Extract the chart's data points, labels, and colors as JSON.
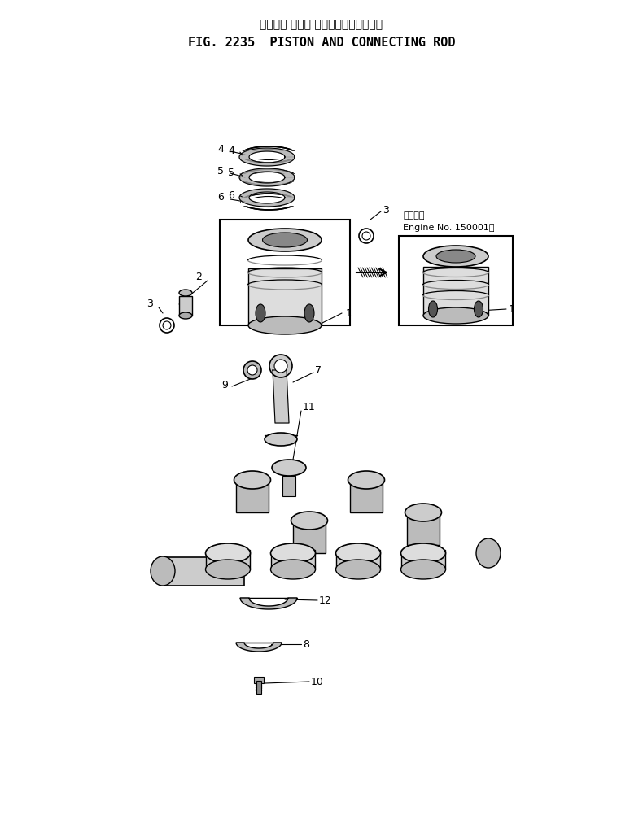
{
  "title_japanese": "ピストン および コネクティングロッド",
  "title_english": "FIG. 2235  PISTON AND CONNECTING ROD",
  "bg_color": "#ffffff",
  "fig_width": 7.9,
  "fig_height": 10.13,
  "engine_note_japanese": "適用号機",
  "engine_note_english": "Engine No. 150001～",
  "part_labels": {
    "1": [
      1,
      "1"
    ],
    "2": [
      2,
      "2"
    ],
    "3": [
      3,
      "3"
    ],
    "4": [
      4,
      "4"
    ],
    "5": [
      5,
      "5"
    ],
    "6": [
      6,
      "6"
    ],
    "7": [
      7,
      "7"
    ],
    "8": [
      8,
      "8"
    ],
    "9": [
      9,
      "9"
    ],
    "10": [
      10,
      "10"
    ],
    "11": [
      11,
      "11"
    ],
    "12": [
      12,
      "12"
    ]
  }
}
